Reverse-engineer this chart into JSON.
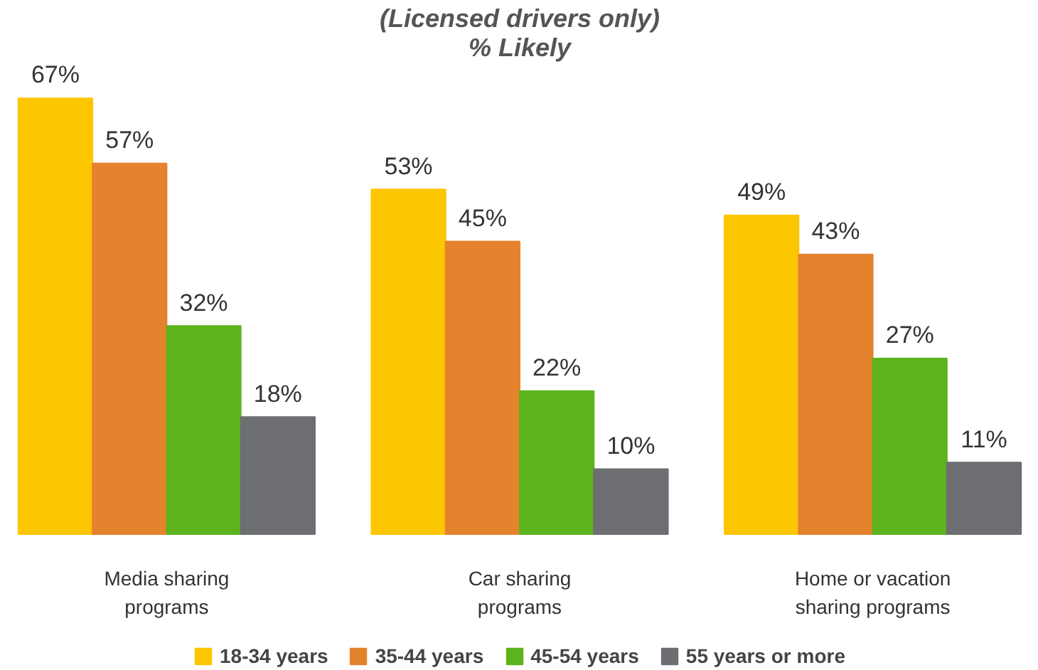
{
  "chart_data": {
    "type": "bar",
    "title": "(Licensed drivers only)",
    "subtitle": "% Likely",
    "categories": [
      "Media sharing programs",
      "Car sharing programs",
      "Home or vacation sharing programs"
    ],
    "series": [
      {
        "name": "18-34 years",
        "color": "#fcc600",
        "values": [
          67,
          53,
          49
        ],
        "value_labels": [
          "67%",
          "53%",
          "49%"
        ]
      },
      {
        "name": "35-44 years",
        "color": "#e5822e",
        "values": [
          57,
          45,
          43
        ],
        "value_labels": [
          "57%",
          "45%",
          "43%"
        ]
      },
      {
        "name": "45-54 years",
        "color": "#5cb31b",
        "values": [
          32,
          22,
          27
        ],
        "value_labels": [
          "32%",
          "22%",
          "27%"
        ]
      },
      {
        "name": "55 years or more",
        "color": "#6d6e71",
        "values": [
          18,
          10,
          11
        ],
        "value_labels": [
          "18%",
          "10%",
          "11%"
        ]
      }
    ],
    "legend": "bottom"
  }
}
